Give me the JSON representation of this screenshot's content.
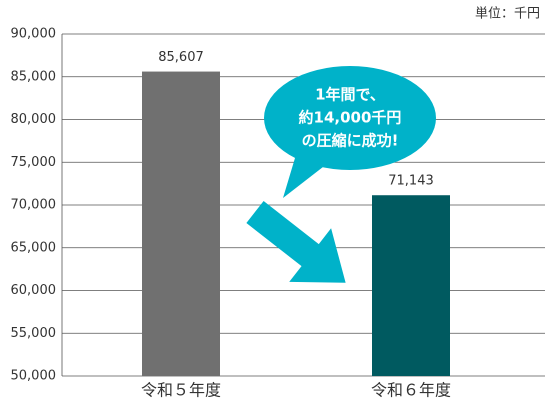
{
  "chart_data": {
    "type": "bar",
    "unit_label": "単位：千円",
    "categories": [
      "令和５年度",
      "令和６年度"
    ],
    "values": [
      85607,
      71143
    ],
    "value_labels": [
      "85,607",
      "71,143"
    ],
    "colors": [
      "#707070",
      "#005a60"
    ],
    "ylim": [
      50000,
      90000
    ],
    "yticks": [
      {
        "value": 50000,
        "label": "50,000"
      },
      {
        "value": 55000,
        "label": "55,000"
      },
      {
        "value": 60000,
        "label": "60,000"
      },
      {
        "value": 65000,
        "label": "65,000"
      },
      {
        "value": 70000,
        "label": "70,000"
      },
      {
        "value": 75000,
        "label": "75,000"
      },
      {
        "value": 80000,
        "label": "80,000"
      },
      {
        "value": 85000,
        "label": "85,000"
      },
      {
        "value": 90000,
        "label": "90,000"
      }
    ],
    "grid": true,
    "annotation": [
      "1年間で、",
      "約14,000千円",
      "の圧縮に成功!"
    ]
  }
}
